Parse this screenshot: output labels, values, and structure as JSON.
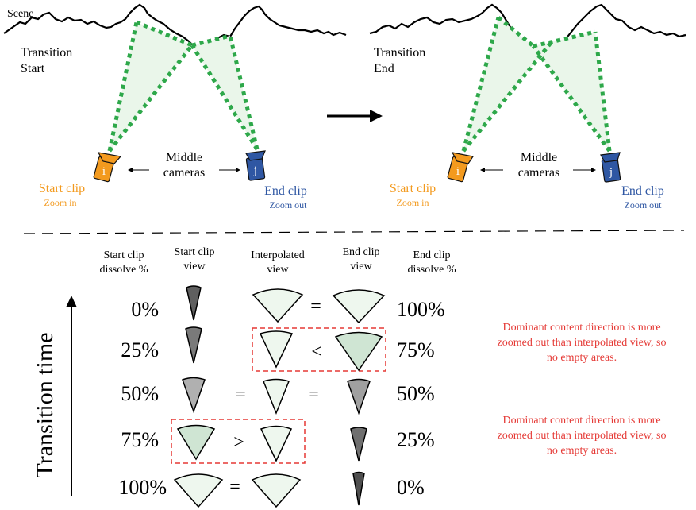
{
  "top": {
    "scene_label": "Scene",
    "left_panel": {
      "label_line1": "Transition",
      "label_line2": "Start",
      "start_camera_letter": "i",
      "end_camera_letter": "j",
      "middle_line1": "Middle",
      "middle_line2": "cameras",
      "start_clip_title": "Start clip",
      "start_clip_sub": "Zoom in",
      "end_clip_title": "End clip",
      "end_clip_sub": "Zoom out"
    },
    "right_panel": {
      "label_line1": "Transition",
      "label_line2": "End",
      "start_camera_letter": "i",
      "end_camera_letter": "j",
      "middle_line1": "Middle",
      "middle_line2": "cameras",
      "start_clip_title": "Start clip",
      "start_clip_sub": "Zoom in",
      "end_clip_title": "End clip",
      "end_clip_sub": "Zoom out"
    }
  },
  "table": {
    "headers": {
      "start_dissolve": [
        "Start clip",
        "dissolve %"
      ],
      "start_view": [
        "Start clip",
        "view"
      ],
      "interp_view": [
        "Interpolated",
        "view"
      ],
      "end_view": [
        "End clip",
        "view"
      ],
      "end_dissolve": [
        "End clip",
        "dissolve %"
      ]
    },
    "axis_label": "Transition time",
    "rows": [
      {
        "start_pct": "0%",
        "end_pct": "100%",
        "op1": "",
        "op2": "="
      },
      {
        "start_pct": "25%",
        "end_pct": "75%",
        "op1": "",
        "op2": "<"
      },
      {
        "start_pct": "50%",
        "end_pct": "50%",
        "op1": "=",
        "op2": "="
      },
      {
        "start_pct": "75%",
        "end_pct": "25%",
        "op1": ">",
        "op2": ""
      },
      {
        "start_pct": "100%",
        "end_pct": "0%",
        "op1": "=",
        "op2": ""
      }
    ],
    "notes": [
      [
        "Dominant content direction is more",
        "zoomed out than interpolated view, so",
        "no empty areas."
      ],
      [
        "Dominant content direction is more",
        "zoomed out than interpolated view, so",
        "no empty areas."
      ]
    ]
  },
  "colors": {
    "start_camera": "#f39a1e",
    "end_camera": "#2f57a3",
    "frustum_line": "#2ea84a",
    "frustum_fill": "#eaf6ea",
    "note_text": "#e53935",
    "highlight_box": "#e53935"
  }
}
